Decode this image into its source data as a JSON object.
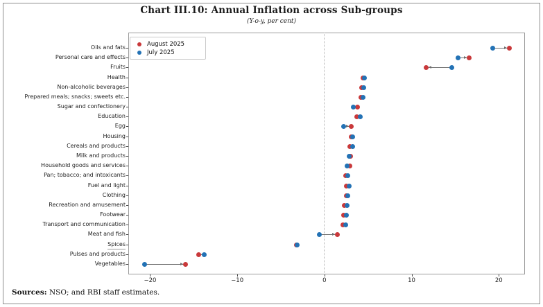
{
  "header": {
    "title": "Chart III.10: Annual Inflation across Sub-groups",
    "subtitle": "(Y-o-y, per cent)"
  },
  "legend": {
    "items": [
      {
        "label": "August 2025",
        "color": "#c9393b"
      },
      {
        "label": "July 2025",
        "color": "#2372b5"
      }
    ]
  },
  "footer": {
    "label": "Sources:",
    "text": " NSO; and RBI staff estimates."
  },
  "chart_data": {
    "type": "scatter",
    "variant": "horizontal dumbbell dot plot",
    "title": "Chart III.10: Annual Inflation across Sub-groups",
    "subtitle": "(Y-o-y, per cent)",
    "xlabel": "",
    "ylabel": "",
    "xlim": [
      -22.5,
      23
    ],
    "xticks": [
      -20,
      -10,
      0,
      10,
      20
    ],
    "zero_reference_line": true,
    "grid": false,
    "legend_position": "upper left",
    "underlined_categories": [
      "Spices"
    ],
    "categories": [
      "Oils and fats",
      "Personal care and effects",
      "Fruits",
      "Health",
      "Non-alcoholic beverages",
      "Prepared meals; snacks; sweets etc.",
      "Sugar and confectionery",
      "Education",
      "Egg",
      "Housing",
      "Cereals and products",
      "Milk and products",
      "Household goods and services",
      "Pan; tobacco; and intoxicants",
      "Fuel and light",
      "Clothing",
      "Recreation and amusement",
      "Footwear",
      "Transport and communication",
      "Meat and fish",
      "Spices",
      "Pulses and products",
      "Vegetables"
    ],
    "series": [
      {
        "name": "August 2025",
        "color": "#c9393b",
        "values": [
          21.2,
          16.6,
          11.7,
          4.4,
          4.3,
          4.2,
          3.8,
          3.7,
          3.1,
          3.1,
          2.9,
          3.0,
          2.9,
          2.4,
          2.5,
          2.5,
          2.3,
          2.2,
          2.1,
          1.5,
          -3.2,
          -14.4,
          -15.9
        ]
      },
      {
        "name": "July 2025",
        "color": "#2372b5",
        "values": [
          19.3,
          15.3,
          14.6,
          4.6,
          4.5,
          4.4,
          3.3,
          4.1,
          2.2,
          3.2,
          3.2,
          2.8,
          2.6,
          2.7,
          2.8,
          2.7,
          2.6,
          2.5,
          2.4,
          -0.6,
          -3.1,
          -13.8,
          -20.6
        ]
      }
    ]
  }
}
